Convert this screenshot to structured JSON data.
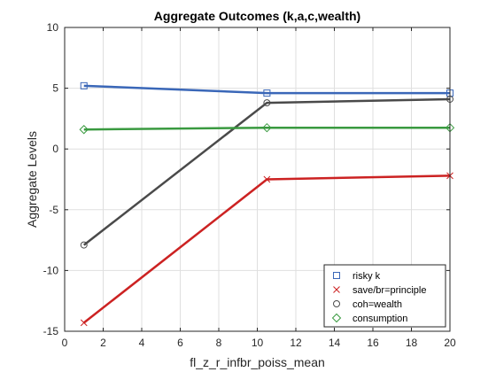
{
  "chart_data": {
    "type": "line",
    "title": "Aggregate Outcomes (k,a,c,wealth)",
    "xlabel": "fl_z_r_infbr_poiss_mean",
    "ylabel": "Aggregate Levels",
    "xlim": [
      0,
      20
    ],
    "ylim": [
      -15,
      10
    ],
    "xticks": [
      0,
      2,
      4,
      6,
      8,
      10,
      12,
      14,
      16,
      18,
      20
    ],
    "yticks": [
      -15,
      -10,
      -5,
      0,
      5,
      10
    ],
    "grid": true,
    "legend_position": "bottom-right",
    "x": [
      1,
      10.5,
      20
    ],
    "series": [
      {
        "name": "risky k",
        "values": [
          5.2,
          4.6,
          4.6
        ],
        "color": "#3a67b8",
        "marker": "square"
      },
      {
        "name": "save/br=principle",
        "values": [
          -14.3,
          -2.5,
          -2.2
        ],
        "color": "#cc2222",
        "marker": "x"
      },
      {
        "name": "coh=wealth",
        "values": [
          -7.9,
          3.8,
          4.1
        ],
        "color": "#4a4a4a",
        "marker": "circle"
      },
      {
        "name": "consumption",
        "values": [
          1.6,
          1.75,
          1.75
        ],
        "color": "#3a9a40",
        "marker": "diamond"
      }
    ]
  }
}
